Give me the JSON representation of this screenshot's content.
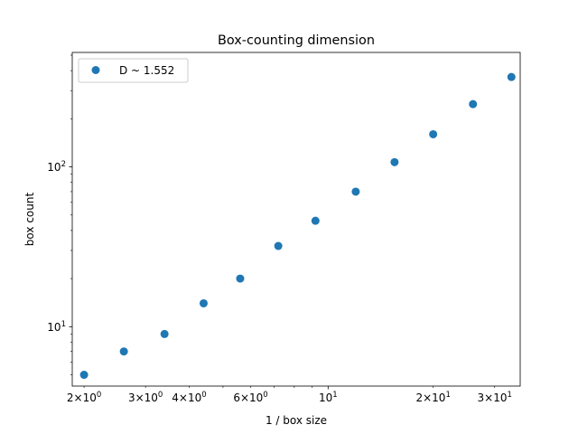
{
  "chart_data": {
    "type": "scatter",
    "title": "Box-counting dimension",
    "xlabel": "1 / box size",
    "ylabel": "box count",
    "xscale": "log",
    "yscale": "log",
    "xlim": [
      1.85,
      35.5
    ],
    "ylim": [
      4.25,
      520
    ],
    "grid": false,
    "legend_position": "upper-left",
    "marker_color": "#1f77b4",
    "series": [
      {
        "name": "D ~ 1.552",
        "x": [
          2.0,
          2.6,
          3.4,
          4.4,
          5.6,
          7.2,
          9.2,
          12.0,
          15.5,
          20.0,
          26.0,
          33.5
        ],
        "y": [
          5,
          7,
          9,
          14,
          20,
          32,
          46,
          70,
          107,
          160,
          247,
          365
        ]
      }
    ],
    "x_ticks_major": [
      {
        "value": 10,
        "base": "10",
        "exp": "1"
      }
    ],
    "x_ticks_minor": [
      {
        "value": 2,
        "mantissa": "2",
        "base": "10",
        "exp": "0"
      },
      {
        "value": 3,
        "mantissa": "3",
        "base": "10",
        "exp": "0"
      },
      {
        "value": 4,
        "mantissa": "4",
        "base": "10",
        "exp": "0"
      },
      {
        "value": 6,
        "mantissa": "6",
        "base": "10",
        "exp": "0"
      },
      {
        "value": 20,
        "mantissa": "2",
        "base": "10",
        "exp": "1"
      },
      {
        "value": 30,
        "mantissa": "3",
        "base": "10",
        "exp": "1"
      }
    ],
    "x_ticks_minor_unlabeled": [
      5,
      7,
      8,
      9
    ],
    "y_ticks_major": [
      {
        "value": 10,
        "base": "10",
        "exp": "1"
      },
      {
        "value": 100,
        "base": "10",
        "exp": "2"
      }
    ],
    "y_ticks_minor_unlabeled": [
      5,
      6,
      7,
      8,
      9,
      20,
      30,
      40,
      50,
      60,
      70,
      80,
      90,
      200,
      300,
      400,
      500
    ]
  }
}
